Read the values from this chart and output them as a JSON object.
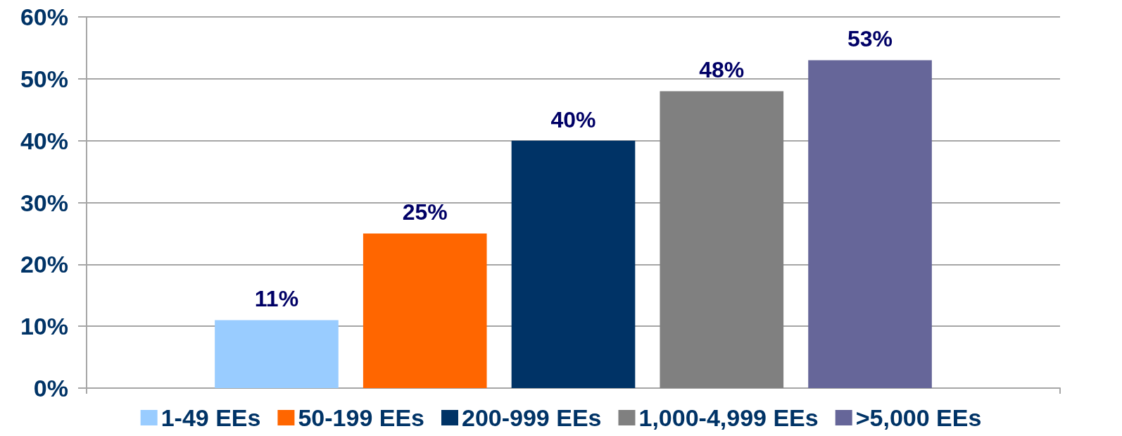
{
  "chart_data": {
    "type": "bar",
    "categories": [
      null
    ],
    "series": [
      {
        "name": "1-49 EEs",
        "color": "#99ccff",
        "values": [
          11
        ],
        "value_labels": [
          "11%"
        ]
      },
      {
        "name": "50-199 EEs",
        "color": "#ff6600",
        "values": [
          25
        ],
        "value_labels": [
          "25%"
        ]
      },
      {
        "name": "200-999 EEs",
        "color": "#003366",
        "values": [
          40
        ],
        "value_labels": [
          "40%"
        ]
      },
      {
        "name": "1,000-4,999 EEs",
        "color": "#808080",
        "values": [
          48
        ],
        "value_labels": [
          "48%"
        ]
      },
      {
        "name": ">5,000 EEs",
        "color": "#666699",
        "values": [
          53
        ],
        "value_labels": [
          "53%"
        ]
      }
    ],
    "ylim": [
      0,
      60
    ],
    "yticks": [
      {
        "value": 0,
        "label": "0%"
      },
      {
        "value": 10,
        "label": "10%"
      },
      {
        "value": 20,
        "label": "20%"
      },
      {
        "value": 30,
        "label": "30%"
      },
      {
        "value": 40,
        "label": "40%"
      },
      {
        "value": 50,
        "label": "50%"
      },
      {
        "value": 60,
        "label": "60%"
      }
    ],
    "grid": "y",
    "legend": "bottom"
  }
}
